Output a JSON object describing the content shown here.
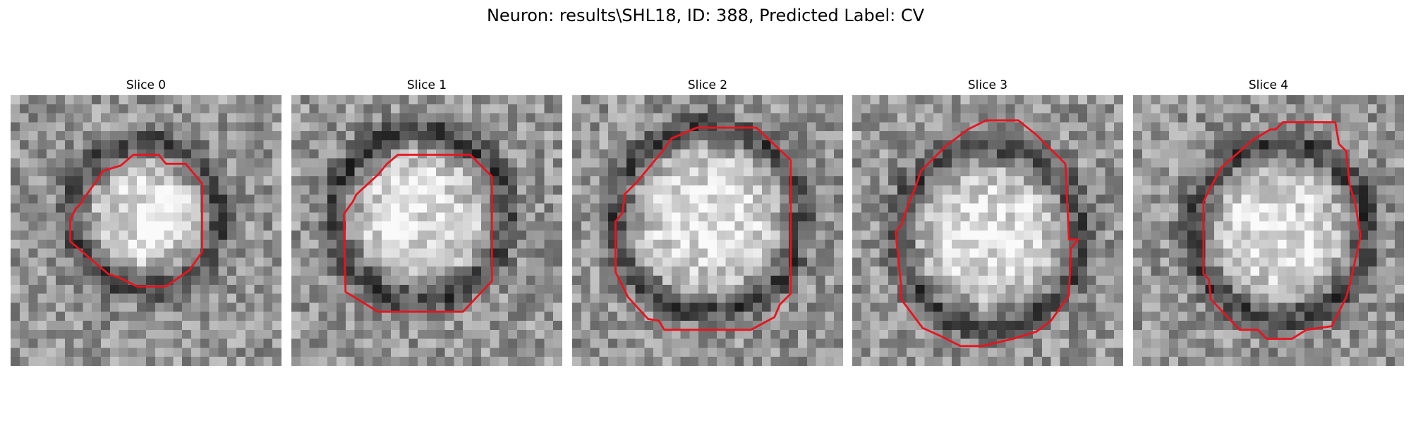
{
  "figure": {
    "title": "Neuron: results\\SHL18, ID: 388, Predicted Label: CV"
  },
  "grid_size": 30,
  "contour_color": "#e8141e",
  "panels": [
    {
      "title": "Slice 0",
      "seed": 11,
      "cx": 15.0,
      "cy": 13.3,
      "r": 7.2,
      "contour": [
        [
          13.6,
          6.6
        ],
        [
          16.4,
          6.6
        ],
        [
          17.2,
          7.6
        ],
        [
          19.4,
          7.6
        ],
        [
          21.2,
          9.8
        ],
        [
          21.2,
          17.4
        ],
        [
          19.8,
          19.4
        ],
        [
          17.2,
          21.2
        ],
        [
          14.0,
          21.2
        ],
        [
          12.0,
          20.2
        ],
        [
          10.8,
          19.8
        ],
        [
          6.6,
          16.2
        ],
        [
          6.6,
          13.8
        ],
        [
          7.2,
          12.6
        ],
        [
          7.8,
          12.0
        ],
        [
          8.0,
          11.6
        ],
        [
          9.6,
          9.4
        ],
        [
          10.2,
          8.4
        ],
        [
          12.2,
          7.8
        ]
      ]
    },
    {
      "title": "Slice 1",
      "seed": 23,
      "cx": 14.2,
      "cy": 13.4,
      "r": 8.6,
      "contour": [
        [
          11.8,
          6.6
        ],
        [
          19.8,
          6.6
        ],
        [
          22.2,
          9.0
        ],
        [
          22.2,
          20.6
        ],
        [
          19.0,
          24.0
        ],
        [
          9.6,
          24.0
        ],
        [
          7.0,
          22.4
        ],
        [
          6.0,
          21.8
        ],
        [
          5.8,
          13.2
        ],
        [
          6.8,
          11.8
        ],
        [
          7.2,
          11.0
        ],
        [
          9.6,
          8.8
        ],
        [
          10.6,
          7.6
        ]
      ]
    },
    {
      "title": "Slice 2",
      "seed": 37,
      "cx": 15.0,
      "cy": 13.8,
      "r": 9.4,
      "contour": [
        [
          11.0,
          4.8
        ],
        [
          13.8,
          3.6
        ],
        [
          20.4,
          3.6
        ],
        [
          24.2,
          7.2
        ],
        [
          24.2,
          22.0
        ],
        [
          23.0,
          23.2
        ],
        [
          22.4,
          24.6
        ],
        [
          19.8,
          26.0
        ],
        [
          10.2,
          26.0
        ],
        [
          9.6,
          25.0
        ],
        [
          8.4,
          24.8
        ],
        [
          6.2,
          22.4
        ],
        [
          4.8,
          19.6
        ],
        [
          4.8,
          14.0
        ],
        [
          5.6,
          13.0
        ],
        [
          5.8,
          11.0
        ],
        [
          7.2,
          9.6
        ],
        [
          10.0,
          6.2
        ]
      ]
    },
    {
      "title": "Slice 3",
      "seed": 49,
      "cx": 15.2,
      "cy": 15.6,
      "r": 9.2,
      "contour": [
        [
          16.0,
          2.8
        ],
        [
          18.4,
          2.8
        ],
        [
          20.4,
          4.4
        ],
        [
          23.6,
          7.6
        ],
        [
          24.0,
          16.0
        ],
        [
          25.0,
          16.0
        ],
        [
          24.2,
          17.0
        ],
        [
          24.0,
          22.2
        ],
        [
          22.0,
          25.0
        ],
        [
          20.4,
          26.2
        ],
        [
          17.8,
          27.0
        ],
        [
          14.4,
          27.8
        ],
        [
          12.0,
          27.8
        ],
        [
          9.6,
          26.6
        ],
        [
          7.8,
          25.8
        ],
        [
          5.4,
          22.6
        ],
        [
          5.4,
          21.0
        ],
        [
          4.8,
          15.2
        ],
        [
          5.4,
          14.4
        ],
        [
          6.4,
          11.6
        ],
        [
          7.0,
          10.2
        ],
        [
          7.6,
          8.4
        ],
        [
          10.4,
          5.6
        ],
        [
          12.8,
          3.8
        ],
        [
          14.8,
          2.8
        ]
      ]
    },
    {
      "title": "Slice 4",
      "seed": 61,
      "cx": 16.2,
      "cy": 15.0,
      "r": 8.8,
      "contour": [
        [
          15.8,
          3.8
        ],
        [
          16.6,
          3.0
        ],
        [
          22.4,
          3.0
        ],
        [
          22.8,
          5.4
        ],
        [
          23.6,
          6.2
        ],
        [
          24.0,
          10.0
        ],
        [
          24.6,
          12.0
        ],
        [
          25.2,
          15.6
        ],
        [
          24.0,
          21.0
        ],
        [
          23.6,
          22.4
        ],
        [
          22.8,
          24.0
        ],
        [
          22.0,
          25.6
        ],
        [
          19.2,
          26.0
        ],
        [
          17.6,
          27.0
        ],
        [
          14.8,
          27.0
        ],
        [
          13.8,
          26.0
        ],
        [
          11.8,
          26.0
        ],
        [
          8.6,
          22.6
        ],
        [
          8.4,
          20.4
        ],
        [
          7.8,
          19.8
        ],
        [
          7.8,
          11.8
        ],
        [
          8.6,
          10.2
        ],
        [
          9.8,
          8.0
        ],
        [
          13.2,
          5.0
        ],
        [
          15.2,
          3.8
        ]
      ]
    }
  ]
}
